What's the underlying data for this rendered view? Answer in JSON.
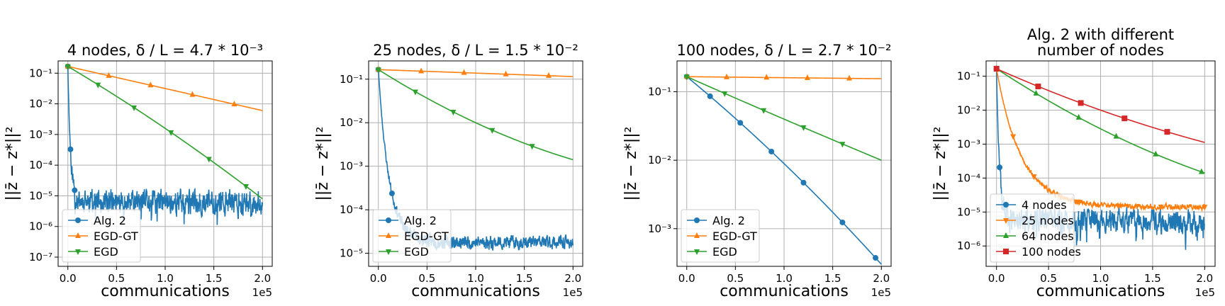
{
  "chart_data": [
    {
      "type": "line",
      "title_lines": [
        "4 nodes, δ / L = 4.7 * 10⁻³"
      ],
      "xlabel": "communications",
      "ylabel": "||z̄ − z*||²",
      "x_offset_label": "1e5",
      "x_ticks": [
        "0.0",
        "0.5",
        "1.0",
        "1.5",
        "2.0"
      ],
      "x_tick_values": [
        0,
        0.5,
        1.0,
        1.5,
        2.0
      ],
      "xlim": [
        -0.1,
        2.1
      ],
      "y_scale": "log",
      "ylim_log10": [
        -7.3,
        -0.6
      ],
      "y_ticks": [
        "10⁻¹",
        "10⁻²",
        "10⁻³",
        "10⁻⁴",
        "10⁻⁵",
        "10⁻⁶",
        "10⁻⁷"
      ],
      "y_tick_exponents": [
        -1,
        -2,
        -3,
        -4,
        -5,
        -6,
        -7
      ],
      "legend_position": "lower-left",
      "series": [
        {
          "name": "Alg. 2",
          "color": "#1f77b4",
          "marker": "circle",
          "curve": {
            "kind": "noise_floor",
            "start": -0.78,
            "rate": 35,
            "floor": -5.2,
            "amp": 0.55,
            "seed": 11
          },
          "marker_x": [
            0,
            0.027,
            0.07
          ]
        },
        {
          "name": "EGD-GT",
          "color": "#ff7f0e",
          "marker": "triangle-up",
          "curve": {
            "kind": "linear",
            "start": -0.78,
            "end": -2.22
          },
          "marker_x": [
            0,
            0.42,
            0.85,
            1.28,
            1.71
          ]
        },
        {
          "name": "EGD",
          "color": "#2ca02c",
          "marker": "triangle-down",
          "curve": {
            "kind": "convex",
            "start": -0.78,
            "mid": -2.8,
            "end": -5.1
          },
          "marker_x": [
            0,
            0.31,
            0.68,
            1.06,
            1.45,
            1.83
          ]
        }
      ]
    },
    {
      "type": "line",
      "title_lines": [
        "25 nodes, δ / L = 1.5 * 10⁻²"
      ],
      "xlabel": "communications",
      "ylabel": "||z̄ − z*||²",
      "x_offset_label": "1e5",
      "x_ticks": [
        "0.0",
        "0.5",
        "1.0",
        "1.5",
        "2.0"
      ],
      "x_tick_values": [
        0,
        0.5,
        1.0,
        1.5,
        2.0
      ],
      "xlim": [
        -0.1,
        2.1
      ],
      "y_scale": "log",
      "ylim_log10": [
        -5.3,
        -0.58
      ],
      "y_ticks": [
        "10⁻¹",
        "10⁻²",
        "10⁻³",
        "10⁻⁴",
        "10⁻⁵"
      ],
      "y_tick_exponents": [
        -1,
        -2,
        -3,
        -4,
        -5
      ],
      "legend_position": "lower-left",
      "series": [
        {
          "name": "Alg. 2",
          "color": "#1f77b4",
          "marker": "circle",
          "curve": {
            "kind": "noise_floor",
            "start": -0.78,
            "rate": 9,
            "floor": -4.75,
            "amp": 0.22,
            "seed": 23
          },
          "marker_x": [
            0,
            0.14,
            0.28,
            0.5
          ]
        },
        {
          "name": "EGD-GT",
          "color": "#ff7f0e",
          "marker": "triangle-up",
          "curve": {
            "kind": "linear",
            "start": -0.78,
            "end": -0.94
          },
          "marker_x": [
            0,
            0.44,
            0.88,
            1.31,
            1.75
          ]
        },
        {
          "name": "EGD",
          "color": "#2ca02c",
          "marker": "triangle-down",
          "curve": {
            "kind": "convex",
            "start": -0.78,
            "mid": -2.0,
            "end": -2.85
          },
          "marker_x": [
            0,
            0.38,
            0.77,
            1.17,
            1.58
          ]
        }
      ]
    },
    {
      "type": "line",
      "title_lines": [
        "100 nodes, δ / L = 2.7 * 10⁻²"
      ],
      "xlabel": "communications",
      "ylabel": "||z̄ − z*||²",
      "x_offset_label": "1e5",
      "x_ticks": [
        "0.0",
        "0.5",
        "1.0",
        "1.5",
        "2.0"
      ],
      "x_tick_values": [
        0,
        0.5,
        1.0,
        1.5,
        2.0
      ],
      "xlim": [
        -0.1,
        2.1
      ],
      "y_scale": "log",
      "ylim_log10": [
        -3.55,
        -0.55
      ],
      "y_ticks": [
        "10⁻¹",
        "10⁻²",
        "10⁻³"
      ],
      "y_tick_exponents": [
        -1,
        -2,
        -3
      ],
      "legend_position": "lower-left",
      "series": [
        {
          "name": "Alg. 2",
          "color": "#1f77b4",
          "marker": "circle",
          "curve": {
            "kind": "convex",
            "start": -0.78,
            "mid": -2.05,
            "end": -3.52
          },
          "marker_x": [
            0,
            0.24,
            0.55,
            0.87,
            1.2,
            1.6,
            1.94
          ]
        },
        {
          "name": "EGD-GT",
          "color": "#ff7f0e",
          "marker": "triangle-up",
          "curve": {
            "kind": "linear",
            "start": -0.78,
            "end": -0.81
          },
          "marker_x": [
            0,
            0.41,
            0.82,
            1.24,
            1.67
          ]
        },
        {
          "name": "EGD",
          "color": "#2ca02c",
          "marker": "triangle-down",
          "curve": {
            "kind": "convex",
            "start": -0.78,
            "mid": -1.4,
            "end": -2.0
          },
          "marker_x": [
            0,
            0.39,
            0.79,
            1.2,
            1.6
          ]
        }
      ]
    },
    {
      "type": "line",
      "title_lines": [
        "Alg. 2 with different",
        "number of nodes"
      ],
      "xlabel": "communications",
      "ylabel": "||z̄ − z*||²",
      "x_offset_label": "1e5",
      "x_ticks": [
        "0.0",
        "0.5",
        "1.0",
        "1.5",
        "2.0"
      ],
      "x_tick_values": [
        0,
        0.5,
        1.0,
        1.5,
        2.0
      ],
      "xlim": [
        -0.1,
        2.1
      ],
      "y_scale": "log",
      "ylim_log10": [
        -6.6,
        -0.55
      ],
      "y_ticks": [
        "10⁻¹",
        "10⁻²",
        "10⁻³",
        "10⁻⁴",
        "10⁻⁵",
        "10⁻⁶"
      ],
      "y_tick_exponents": [
        -1,
        -2,
        -3,
        -4,
        -5,
        -6
      ],
      "legend_position": "lower-left",
      "series": [
        {
          "name": "4 nodes",
          "color": "#1f77b4",
          "marker": "circle",
          "curve": {
            "kind": "noise_floor",
            "start": -0.78,
            "rate": 35,
            "floor": -5.25,
            "amp": 0.5,
            "seed": 37
          },
          "marker_x": [
            0,
            0.03,
            0.07
          ]
        },
        {
          "name": "25 nodes",
          "color": "#ff7f0e",
          "marker": "triangle-down",
          "curve": {
            "kind": "noise_floor",
            "start": -0.78,
            "rate": 4.2,
            "floor": -4.85,
            "amp": 0.12,
            "seed": 53
          },
          "marker_x": [
            0,
            0.16,
            0.36,
            0.78,
            1.17,
            1.58,
            2.0
          ]
        },
        {
          "name": "64 nodes",
          "color": "#2ca02c",
          "marker": "triangle-up",
          "curve": {
            "kind": "convex",
            "start": -0.78,
            "mid": -2.55,
            "end": -3.85
          },
          "marker_x": [
            0,
            0.38,
            0.79,
            1.15,
            1.53,
            1.97
          ]
        },
        {
          "name": "100 nodes",
          "color": "#d62728",
          "marker": "square",
          "curve": {
            "kind": "convex",
            "start": -0.78,
            "mid": -2.0,
            "end": -2.95
          },
          "marker_x": [
            0,
            0.4,
            0.81,
            1.23,
            1.64
          ]
        }
      ]
    }
  ]
}
